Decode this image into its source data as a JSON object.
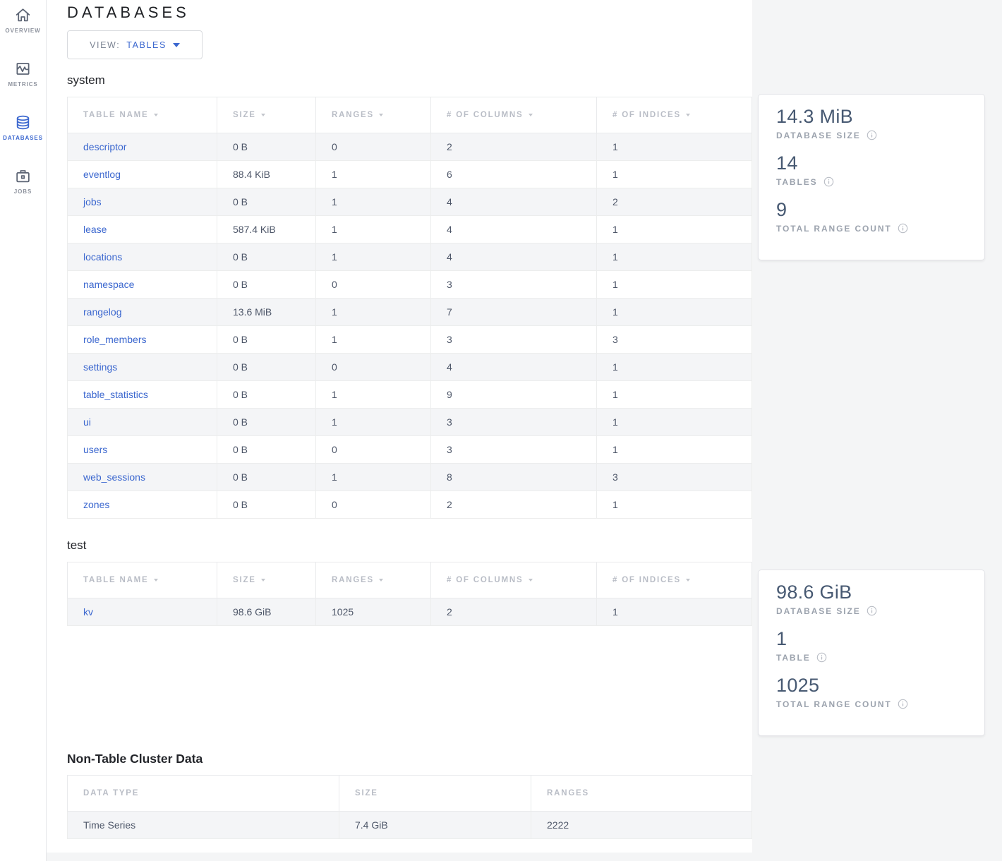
{
  "sidebar": {
    "items": [
      {
        "label": "OVERVIEW",
        "icon": "home-icon",
        "active": false
      },
      {
        "label": "METRICS",
        "icon": "metrics-icon",
        "active": false
      },
      {
        "label": "DATABASES",
        "icon": "databases-icon",
        "active": true
      },
      {
        "label": "JOBS",
        "icon": "jobs-icon",
        "active": false
      }
    ]
  },
  "header": {
    "title": "DATABASES",
    "view_label": "VIEW:",
    "view_value": "TABLES"
  },
  "sections": [
    {
      "heading": "system",
      "sortable": true,
      "link_first_col": true,
      "columns": [
        "TABLE NAME",
        "SIZE",
        "RANGES",
        "# OF COLUMNS",
        "# OF INDICES"
      ],
      "rows": [
        [
          "descriptor",
          "0 B",
          "0",
          "2",
          "1"
        ],
        [
          "eventlog",
          "88.4 KiB",
          "1",
          "6",
          "1"
        ],
        [
          "jobs",
          "0 B",
          "1",
          "4",
          "2"
        ],
        [
          "lease",
          "587.4 KiB",
          "1",
          "4",
          "1"
        ],
        [
          "locations",
          "0 B",
          "1",
          "4",
          "1"
        ],
        [
          "namespace",
          "0 B",
          "0",
          "3",
          "1"
        ],
        [
          "rangelog",
          "13.6 MiB",
          "1",
          "7",
          "1"
        ],
        [
          "role_members",
          "0 B",
          "1",
          "3",
          "3"
        ],
        [
          "settings",
          "0 B",
          "0",
          "4",
          "1"
        ],
        [
          "table_statistics",
          "0 B",
          "1",
          "9",
          "1"
        ],
        [
          "ui",
          "0 B",
          "1",
          "3",
          "1"
        ],
        [
          "users",
          "0 B",
          "0",
          "3",
          "1"
        ],
        [
          "web_sessions",
          "0 B",
          "1",
          "8",
          "3"
        ],
        [
          "zones",
          "0 B",
          "0",
          "2",
          "1"
        ]
      ],
      "summary": {
        "stats": [
          {
            "value": "14.3 MiB",
            "label": "DATABASE SIZE"
          },
          {
            "value": "14",
            "label": "TABLES"
          },
          {
            "value": "9",
            "label": "TOTAL RANGE COUNT"
          }
        ]
      }
    },
    {
      "heading": "test",
      "sortable": true,
      "link_first_col": true,
      "columns": [
        "TABLE NAME",
        "SIZE",
        "RANGES",
        "# OF COLUMNS",
        "# OF INDICES"
      ],
      "rows": [
        [
          "kv",
          "98.6 GiB",
          "1025",
          "2",
          "1"
        ]
      ],
      "summary": {
        "stats": [
          {
            "value": "98.6 GiB",
            "label": "DATABASE SIZE"
          },
          {
            "value": "1",
            "label": "TABLE"
          },
          {
            "value": "1025",
            "label": "TOTAL RANGE COUNT"
          }
        ]
      }
    }
  ],
  "non_table": {
    "heading": "Non-Table Cluster Data",
    "sortable": false,
    "link_first_col": false,
    "columns": [
      "DATA TYPE",
      "SIZE",
      "RANGES"
    ],
    "rows": [
      [
        "Time Series",
        "7.4 GiB",
        "2222"
      ]
    ]
  },
  "colors": {
    "accent_blue": "#3b67cf",
    "link_blue": "#3b67cf",
    "cell_text": "#4e5769",
    "column_header_gray": "#b9bdc6",
    "card_value": "#475972",
    "card_label": "#9ca3ae",
    "page_gray": "#f4f5f6",
    "row_stripe": "#f4f5f7",
    "border": "#e9eaec"
  }
}
